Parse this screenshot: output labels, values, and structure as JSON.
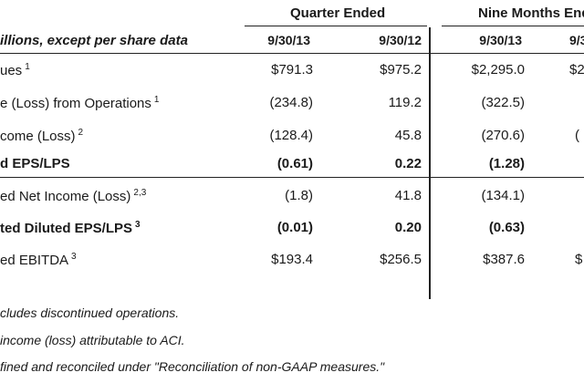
{
  "header": {
    "group_quarter": "Quarter Ended",
    "group_nine": "Nine Months Ended",
    "units_label": "illions, except per share data",
    "columns": [
      "9/30/13",
      "9/30/12",
      "9/30/13",
      "9/3"
    ]
  },
  "rows": [
    {
      "label": "ues",
      "sup": "1",
      "bold": false,
      "values": [
        "$791.3",
        "$975.2",
        "$2,295.0",
        "$2"
      ]
    },
    {
      "label": "e (Loss) from Operations",
      "sup": "1",
      "bold": false,
      "values": [
        "(234.8)",
        "119.2",
        "(322.5)",
        ""
      ]
    },
    {
      "label": "come (Loss)",
      "sup": "2",
      "bold": false,
      "values": [
        "(128.4)",
        "45.8",
        "(270.6)",
        "("
      ]
    },
    {
      "label": "d EPS/LPS",
      "sup": "",
      "bold": true,
      "values": [
        "(0.61)",
        "0.22",
        "(1.28)",
        ""
      ]
    },
    {
      "label": "ed Net Income (Loss)",
      "sup": "2,3",
      "bold": false,
      "values": [
        "(1.8)",
        "41.8",
        "(134.1)",
        ""
      ]
    },
    {
      "label": "ted Diluted EPS/LPS",
      "sup": "3",
      "bold": true,
      "values": [
        "(0.01)",
        "0.20",
        "(0.63)",
        ""
      ]
    },
    {
      "label": "ed EBITDA",
      "sup": "3",
      "bold": false,
      "values": [
        "$193.4",
        "$256.5",
        "$387.6",
        "$"
      ]
    }
  ],
  "footnotes": [
    "cludes discontinued operations.",
    "income (loss) attributable to ACI.",
    "fined and reconciled under \"Reconciliation of non-GAAP measures.\""
  ]
}
